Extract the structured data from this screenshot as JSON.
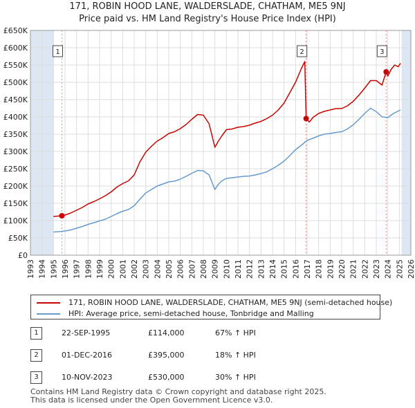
{
  "title_line1": "171, ROBIN HOOD LANE, WALDERSLADE, CHATHAM, ME5 9NJ",
  "title_line2": "Price paid vs. HM Land Registry's House Price Index (HPI)",
  "colors": {
    "price_paid": "#cc0000",
    "hpi": "#6699cc",
    "shade": "#dde6f3",
    "grid": "#dddddd",
    "vline": "#ff8888"
  },
  "chart_data": {
    "type": "line",
    "title": "Price paid vs. HM Land Registry's House Price Index (HPI)",
    "xlabel": "",
    "ylabel": "",
    "xlim": [
      1993,
      2026
    ],
    "ylim": [
      0,
      650000
    ],
    "x_ticks": [
      "1993",
      "1994",
      "1995",
      "1996",
      "1997",
      "1998",
      "1999",
      "2000",
      "2001",
      "2002",
      "2003",
      "2004",
      "2005",
      "2006",
      "2007",
      "2008",
      "2009",
      "2010",
      "2011",
      "2012",
      "2013",
      "2014",
      "2015",
      "2016",
      "2017",
      "2018",
      "2019",
      "2020",
      "2021",
      "2022",
      "2023",
      "2024",
      "2025",
      "2026"
    ],
    "y_ticks": [
      {
        "value": 0,
        "label": "£0"
      },
      {
        "value": 50000,
        "label": "£50K"
      },
      {
        "value": 100000,
        "label": "£100K"
      },
      {
        "value": 150000,
        "label": "£150K"
      },
      {
        "value": 200000,
        "label": "£200K"
      },
      {
        "value": 250000,
        "label": "£250K"
      },
      {
        "value": 300000,
        "label": "£300K"
      },
      {
        "value": 350000,
        "label": "£350K"
      },
      {
        "value": 400000,
        "label": "£400K"
      },
      {
        "value": 450000,
        "label": "£450K"
      },
      {
        "value": 500000,
        "label": "£500K"
      },
      {
        "value": 550000,
        "label": "£550K"
      },
      {
        "value": 600000,
        "label": "£600K"
      },
      {
        "value": 650000,
        "label": "£650K"
      }
    ],
    "shaded_ranges": [
      [
        1993,
        1995.0
      ],
      [
        2025.2,
        2026
      ]
    ],
    "series": [
      {
        "name": "171, ROBIN HOOD LANE, WALDERSLADE, CHATHAM, ME5 9NJ (semi-detached house)",
        "x": [
          1995.0,
          1995.73,
          1996.0,
          1996.5,
          1997.0,
          1997.5,
          1998.0,
          1998.5,
          1999.0,
          1999.5,
          2000.0,
          2000.5,
          2001.0,
          2001.5,
          2002.0,
          2002.5,
          2003.0,
          2003.5,
          2004.0,
          2004.5,
          2005.0,
          2005.5,
          2006.0,
          2006.5,
          2007.0,
          2007.5,
          2008.0,
          2008.5,
          2009.0,
          2009.3,
          2009.6,
          2010.0,
          2010.5,
          2011.0,
          2011.5,
          2012.0,
          2012.5,
          2013.0,
          2013.5,
          2014.0,
          2014.5,
          2015.0,
          2015.5,
          2016.0,
          2016.5,
          2016.8,
          2016.917,
          2017.2,
          2017.5,
          2018.0,
          2018.5,
          2019.0,
          2019.5,
          2020.0,
          2020.5,
          2021.0,
          2021.5,
          2022.0,
          2022.5,
          2023.0,
          2023.5,
          2023.858,
          2024.0,
          2024.3,
          2024.6,
          2024.9,
          2025.1
        ],
        "y": [
          112000,
          114000,
          116000,
          122000,
          130000,
          138000,
          148000,
          155000,
          163000,
          172000,
          183000,
          197000,
          207000,
          215000,
          232000,
          270000,
          298000,
          315000,
          330000,
          340000,
          352000,
          357000,
          366000,
          378000,
          393000,
          407000,
          405000,
          380000,
          312000,
          330000,
          345000,
          363000,
          365000,
          370000,
          372000,
          376000,
          382000,
          387000,
          395000,
          405000,
          420000,
          440000,
          470000,
          500000,
          540000,
          560000,
          395000,
          385000,
          398000,
          410000,
          416000,
          420000,
          424000,
          424000,
          432000,
          445000,
          463000,
          483000,
          505000,
          505000,
          492000,
          530000,
          518000,
          538000,
          550000,
          545000,
          555000
        ]
      },
      {
        "name": "HPI: Average price, semi-detached house, Tonbridge and Malling",
        "x": [
          1995.0,
          1995.5,
          1996.0,
          1996.5,
          1997.0,
          1997.5,
          1998.0,
          1998.5,
          1999.0,
          1999.5,
          2000.0,
          2000.5,
          2001.0,
          2001.5,
          2002.0,
          2002.5,
          2003.0,
          2003.5,
          2004.0,
          2004.5,
          2005.0,
          2005.5,
          2006.0,
          2006.5,
          2007.0,
          2007.5,
          2008.0,
          2008.5,
          2009.0,
          2009.3,
          2009.6,
          2010.0,
          2010.5,
          2011.0,
          2011.5,
          2012.0,
          2012.5,
          2013.0,
          2013.5,
          2014.0,
          2014.5,
          2015.0,
          2015.5,
          2016.0,
          2016.5,
          2017.0,
          2017.5,
          2018.0,
          2018.5,
          2019.0,
          2019.5,
          2020.0,
          2020.5,
          2021.0,
          2021.5,
          2022.0,
          2022.5,
          2023.0,
          2023.5,
          2024.0,
          2024.5,
          2025.1
        ],
        "y": [
          67000,
          68000,
          70000,
          73000,
          78000,
          83000,
          89000,
          94000,
          99000,
          104000,
          112000,
          120000,
          127000,
          132000,
          143000,
          162000,
          180000,
          190000,
          200000,
          206000,
          212000,
          214000,
          220000,
          228000,
          237000,
          245000,
          244000,
          232000,
          190000,
          205000,
          215000,
          222000,
          224000,
          226000,
          228000,
          229000,
          232000,
          236000,
          241000,
          250000,
          260000,
          272000,
          288000,
          305000,
          318000,
          332000,
          338000,
          345000,
          350000,
          352000,
          355000,
          357000,
          365000,
          377000,
          393000,
          410000,
          425000,
          415000,
          400000,
          398000,
          410000,
          420000
        ]
      }
    ],
    "sales": [
      {
        "label": "1",
        "x": 1995.73,
        "y": 114000
      },
      {
        "label": "2",
        "x": 2016.917,
        "y": 395000
      },
      {
        "label": "3",
        "x": 2023.858,
        "y": 530000
      }
    ]
  },
  "legend": {
    "price_paid": "171, ROBIN HOOD LANE, WALDERSLADE, CHATHAM, ME5 9NJ (semi-detached house)",
    "hpi": "HPI: Average price, semi-detached house, Tonbridge and Malling"
  },
  "sales_table": [
    {
      "num": "1",
      "date": "22-SEP-1995",
      "price": "£114,000",
      "hpi": "67% ↑ HPI"
    },
    {
      "num": "2",
      "date": "01-DEC-2016",
      "price": "£395,000",
      "hpi": "18% ↑ HPI"
    },
    {
      "num": "3",
      "date": "10-NOV-2023",
      "price": "£530,000",
      "hpi": "30% ↑ HPI"
    }
  ],
  "footer_line1": "Contains HM Land Registry data © Crown copyright and database right 2025.",
  "footer_line2": "This data is licensed under the Open Government Licence v3.0."
}
